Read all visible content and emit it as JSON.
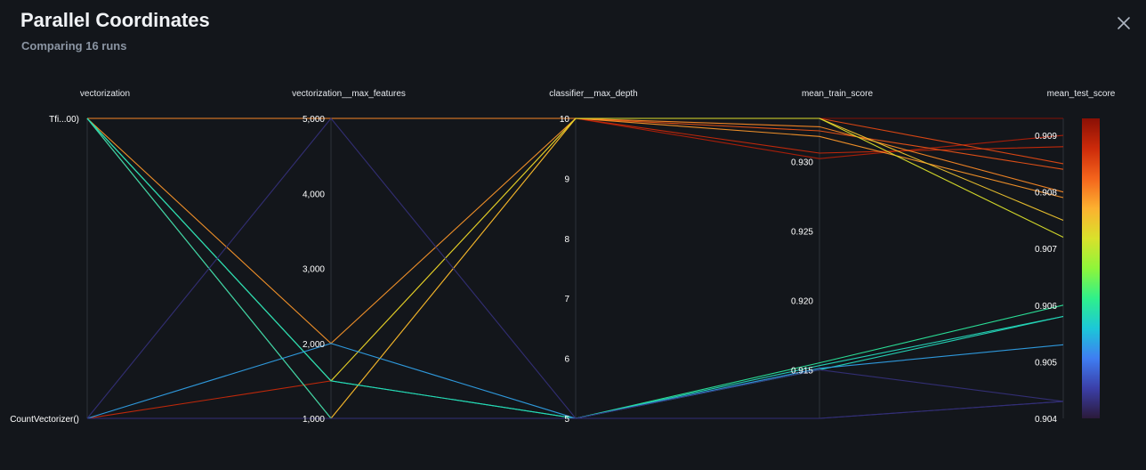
{
  "header": {
    "title": "Parallel Coordinates",
    "subtitle": "Comparing 16 runs",
    "close_icon": "close-icon"
  },
  "chart_data": {
    "type": "parallel-coordinates",
    "axes": [
      {
        "name": "vectorization",
        "kind": "categorical",
        "categories": [
          "CountVectorizer()",
          "Tfi...00)"
        ],
        "ticks": [
          "CountVectorizer()",
          "Tfi...00)"
        ]
      },
      {
        "name": "vectorization__max_features",
        "kind": "numeric",
        "range": [
          1000,
          5000
        ],
        "ticks": [
          1000,
          2000,
          3000,
          4000,
          5000
        ],
        "tick_labels": [
          "1,000",
          "2,000",
          "3,000",
          "4,000",
          "5,000"
        ]
      },
      {
        "name": "classifier__max_depth",
        "kind": "numeric",
        "range": [
          5,
          10
        ],
        "ticks": [
          5,
          6,
          7,
          8,
          9,
          10
        ],
        "tick_labels": [
          "5",
          "6",
          "7",
          "8",
          "9",
          "10"
        ]
      },
      {
        "name": "mean_train_score",
        "kind": "numeric",
        "range": [
          0.9115,
          0.9331
        ],
        "ticks": [
          0.915,
          0.92,
          0.925,
          0.93
        ],
        "tick_labels": [
          "0.915",
          "0.920",
          "0.925",
          "0.930"
        ]
      },
      {
        "name": "mean_test_score",
        "kind": "numeric",
        "range": [
          0.904,
          0.9093
        ],
        "ticks": [
          0.904,
          0.905,
          0.906,
          0.907,
          0.908,
          0.909
        ],
        "tick_labels": [
          "0.904",
          "0.905",
          "0.906",
          "0.907",
          "0.908",
          "0.909"
        ]
      }
    ],
    "color_axis": "mean_test_score",
    "color_range": [
      0.904,
      0.9093
    ],
    "colormap": [
      "#2b1a3a",
      "#3b3fa8",
      "#3f7df2",
      "#1cc7d8",
      "#2ff08b",
      "#8ef53a",
      "#d9e12b",
      "#fcb130",
      "#f4641c",
      "#cc2a0a",
      "#8a1005"
    ],
    "runs": [
      {
        "values": [
          "Tfi...00)",
          5000,
          10,
          0.9331,
          0.9093
        ]
      },
      {
        "values": [
          "CountVectorizer()",
          1000,
          10,
          0.9302,
          0.909
        ]
      },
      {
        "values": [
          "CountVectorizer()",
          1500,
          10,
          0.9306,
          0.9088
        ]
      },
      {
        "values": [
          "Tfi...00)",
          5000,
          10,
          0.9331,
          0.9085
        ]
      },
      {
        "values": [
          "Tfi...00)",
          5000,
          10,
          0.9322,
          0.9084
        ]
      },
      {
        "values": [
          "Tfi...00)",
          5000,
          10,
          0.9325,
          0.908
        ]
      },
      {
        "values": [
          "Tfi...00)",
          2000,
          10,
          0.9318,
          0.9079
        ]
      },
      {
        "values": [
          "Tfi...00)",
          1000,
          10,
          0.9331,
          0.9075
        ]
      },
      {
        "values": [
          "Tfi...00)",
          1500,
          10,
          0.9331,
          0.9072
        ]
      },
      {
        "values": [
          "Tfi...00)",
          1500,
          5,
          0.9155,
          0.906
        ]
      },
      {
        "values": [
          "Tfi...00)",
          1500,
          5,
          0.9153,
          0.9058
        ]
      },
      {
        "values": [
          "Tfi...00)",
          1000,
          5,
          0.915,
          0.9058
        ]
      },
      {
        "values": [
          "CountVectorizer()",
          2000,
          5,
          0.9151,
          0.9053
        ]
      },
      {
        "values": [
          "CountVectorizer()",
          5000,
          5,
          0.915,
          0.9043
        ]
      },
      {
        "values": [
          "CountVectorizer()",
          1000,
          5,
          0.9115,
          0.9043
        ]
      },
      {
        "values": [
          "CountVectorizer()",
          1000,
          5,
          0.9115,
          0.9043
        ]
      }
    ],
    "grid": false,
    "legend": "right colorbar"
  }
}
